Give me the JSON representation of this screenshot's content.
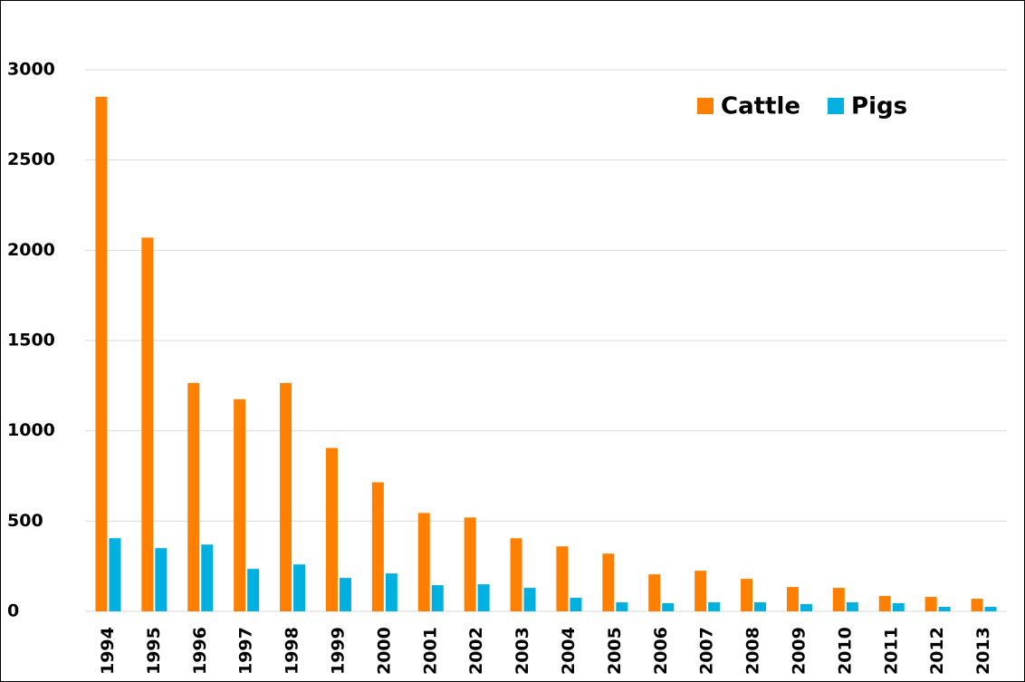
{
  "chart_data": {
    "type": "bar",
    "categories": [
      "1994",
      "1995",
      "1996",
      "1997",
      "1998",
      "1999",
      "2000",
      "2001",
      "2002",
      "2003",
      "2004",
      "2005",
      "2006",
      "2007",
      "2008",
      "2009",
      "2010",
      "2011",
      "2012",
      "2013"
    ],
    "series": [
      {
        "name": "Cattle",
        "color": "#ff8000",
        "values": [
          2850,
          2070,
          1265,
          1175,
          1265,
          905,
          715,
          545,
          520,
          405,
          360,
          320,
          205,
          225,
          180,
          135,
          130,
          85,
          80,
          70
        ]
      },
      {
        "name": "Pigs",
        "color": "#00b0e0",
        "values": [
          405,
          350,
          370,
          235,
          260,
          185,
          210,
          145,
          150,
          130,
          75,
          50,
          45,
          50,
          50,
          40,
          50,
          45,
          25,
          25
        ]
      }
    ],
    "ylim": [
      0,
      3000
    ],
    "yticks": [
      0,
      500,
      1000,
      1500,
      2000,
      2500,
      3000
    ],
    "grid": true,
    "legend": "top-right"
  }
}
